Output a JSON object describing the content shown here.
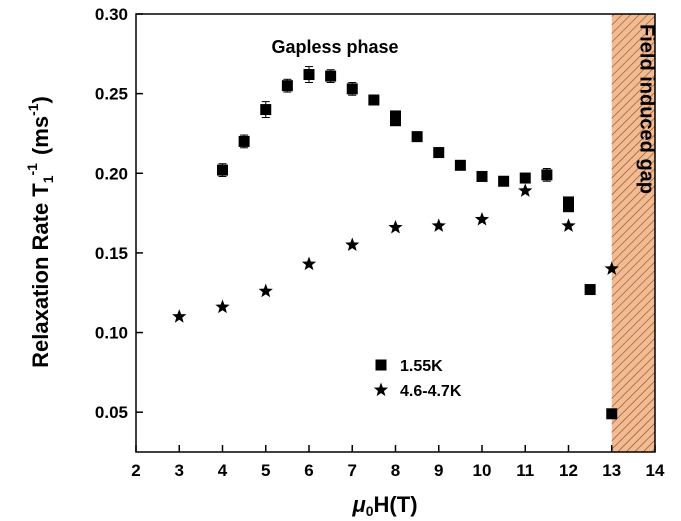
{
  "chart_data": {
    "type": "scatter",
    "title": "Gapless phase",
    "xlabel": {
      "mu": "μ",
      "sub": "0",
      "rest": "H(T)"
    },
    "ylabel": {
      "main": "Relaxation Rate T",
      "sub": "1",
      "sup": "-1",
      "unit": "(ms",
      "unit_sup": "-1",
      "close": ")"
    },
    "xlim": [
      2,
      14
    ],
    "ylim": [
      0.025,
      0.3
    ],
    "xticks": [
      2,
      3,
      4,
      5,
      6,
      7,
      8,
      9,
      10,
      11,
      12,
      13,
      14
    ],
    "yticks": [
      0.05,
      {
        "value": 0.1,
        "label": "0.10"
      },
      0.15,
      {
        "value": 0.2,
        "label": "0.20"
      },
      0.25,
      {
        "value": 0.3,
        "label": "0.30"
      }
    ],
    "shaded_region": {
      "xlim": [
        13,
        14
      ],
      "label": "Field induced gap",
      "color": "#e8833a"
    },
    "series": [
      {
        "name": "1.55K",
        "marker": "square",
        "color": "#000000",
        "x": [
          4,
          4.5,
          5,
          5.5,
          6,
          6.5,
          7,
          7.5,
          8,
          8,
          8.5,
          9,
          9.5,
          10,
          10.5,
          11,
          11.5,
          12,
          12,
          12.5,
          13
        ],
        "values": [
          0.202,
          0.22,
          0.24,
          0.255,
          0.262,
          0.261,
          0.253,
          0.246,
          0.236,
          0.233,
          0.223,
          0.213,
          0.205,
          0.198,
          0.195,
          0.197,
          0.199,
          0.182,
          0.179,
          0.127,
          0.049
        ],
        "errors": [
          0.004,
          0.004,
          0.005,
          0.004,
          0.005,
          0.004,
          0.004,
          0.003,
          0.003,
          0.003,
          0.002,
          0.002,
          0.002,
          0.002,
          0.002,
          0.002,
          0.004,
          0.003,
          0.003,
          0.002,
          0.002
        ]
      },
      {
        "name": "4.6-4.7K",
        "marker": "star",
        "color": "#000000",
        "x": [
          3,
          4,
          5,
          6,
          7,
          8,
          9,
          10,
          11,
          12,
          13
        ],
        "values": [
          0.11,
          0.116,
          0.126,
          0.143,
          0.155,
          0.166,
          0.167,
          0.171,
          0.189,
          0.167,
          0.14
        ]
      }
    ]
  }
}
